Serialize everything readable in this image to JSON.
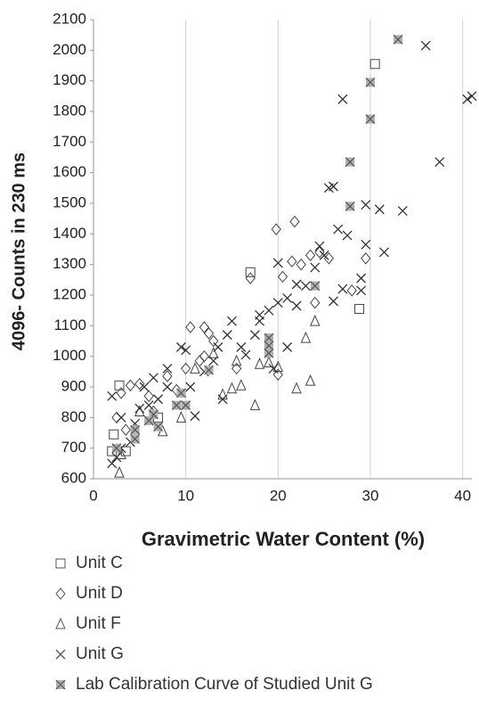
{
  "chart_data": {
    "type": "scatter",
    "x_label": "Gravimetric Water Content (%)",
    "y_label": "4096- Counts in 230 ms",
    "xlim": [
      0,
      41
    ],
    "xticks": [
      0,
      10,
      20,
      30,
      40
    ],
    "ylim": [
      600,
      2100
    ],
    "yticks": [
      600,
      700,
      800,
      900,
      1000,
      1100,
      1200,
      1300,
      1400,
      1500,
      1600,
      1700,
      1800,
      1900,
      2000,
      2100
    ],
    "grid": "x",
    "series": [
      {
        "name": "Unit C",
        "marker": "square",
        "color": "#444",
        "x": [
          30.5,
          17,
          28.8,
          2.8,
          2,
          2.2,
          3.5,
          7
        ],
        "values": [
          1955,
          1275,
          1155,
          905,
          690,
          745,
          690,
          800
        ]
      },
      {
        "name": "Unit D",
        "marker": "diamond",
        "color": "#444",
        "x": [
          19.8,
          21.8,
          17,
          10.5,
          12,
          12.5,
          13,
          21.5,
          22.5,
          23.5,
          24.5,
          25.5,
          29.5,
          28,
          24,
          20.5,
          15.5,
          20,
          5,
          4,
          6,
          3,
          8,
          9,
          10,
          11.5,
          2.5,
          3.5,
          6.5,
          12
        ],
        "values": [
          1415,
          1440,
          1255,
          1095,
          1095,
          1075,
          1050,
          1310,
          1300,
          1330,
          1340,
          1320,
          1320,
          1215,
          1175,
          1260,
          960,
          940,
          910,
          905,
          870,
          880,
          935,
          890,
          960,
          985,
          800,
          760,
          820,
          1000
        ]
      },
      {
        "name": "Unit F",
        "marker": "triangle",
        "color": "#444",
        "x": [
          2.8,
          3,
          7.5,
          9.5,
          14,
          15,
          16,
          17.5,
          18,
          19,
          20,
          22,
          23.5,
          23,
          24,
          11,
          13,
          5,
          15.5
        ],
        "values": [
          620,
          680,
          755,
          800,
          875,
          895,
          905,
          840,
          975,
          980,
          965,
          895,
          920,
          1060,
          1115,
          960,
          1010,
          820,
          985
        ]
      },
      {
        "name": "Unit G",
        "marker": "cross",
        "color": "#333",
        "x": [
          36,
          40.5,
          41,
          37.5,
          33.5,
          31,
          31.5,
          27,
          26,
          25.5,
          27.5,
          29.5,
          29.5,
          29,
          29,
          27,
          26,
          24,
          25,
          24.5,
          23,
          22,
          22,
          21,
          20,
          20,
          19,
          18,
          18,
          17.5,
          16,
          15,
          14.5,
          13.5,
          14,
          13,
          12,
          11,
          10.5,
          10,
          9.5,
          8,
          8,
          7,
          6,
          5,
          4.5,
          4,
          3,
          2.5,
          2,
          2,
          3,
          5.5,
          6.5,
          21,
          19.5,
          26.5,
          16.5
        ],
        "values": [
          2015,
          1840,
          1850,
          1635,
          1475,
          1480,
          1340,
          1840,
          1555,
          1550,
          1395,
          1495,
          1365,
          1255,
          1215,
          1220,
          1180,
          1290,
          1330,
          1360,
          1230,
          1165,
          1235,
          1190,
          1305,
          1175,
          1150,
          1135,
          1115,
          1070,
          1030,
          1115,
          1070,
          1030,
          860,
          985,
          950,
          805,
          900,
          1020,
          1030,
          960,
          900,
          860,
          840,
          830,
          780,
          720,
          700,
          670,
          650,
          870,
          800,
          900,
          930,
          1030,
          960,
          1415,
          1005
        ]
      },
      {
        "name": "Lab Calibration Curve of Studied Unit G",
        "marker": "boxcross",
        "color": "#b0b0b0",
        "x": [
          33,
          30,
          30,
          27.8,
          27.8,
          24,
          19,
          19,
          19,
          12.5,
          9.5,
          9,
          6.5,
          6,
          4.5,
          4.5,
          2.5,
          7,
          10
        ],
        "values": [
          2035,
          1895,
          1775,
          1635,
          1490,
          1230,
          1060,
          1035,
          1010,
          955,
          880,
          840,
          810,
          790,
          760,
          730,
          700,
          770,
          840
        ]
      }
    ]
  }
}
